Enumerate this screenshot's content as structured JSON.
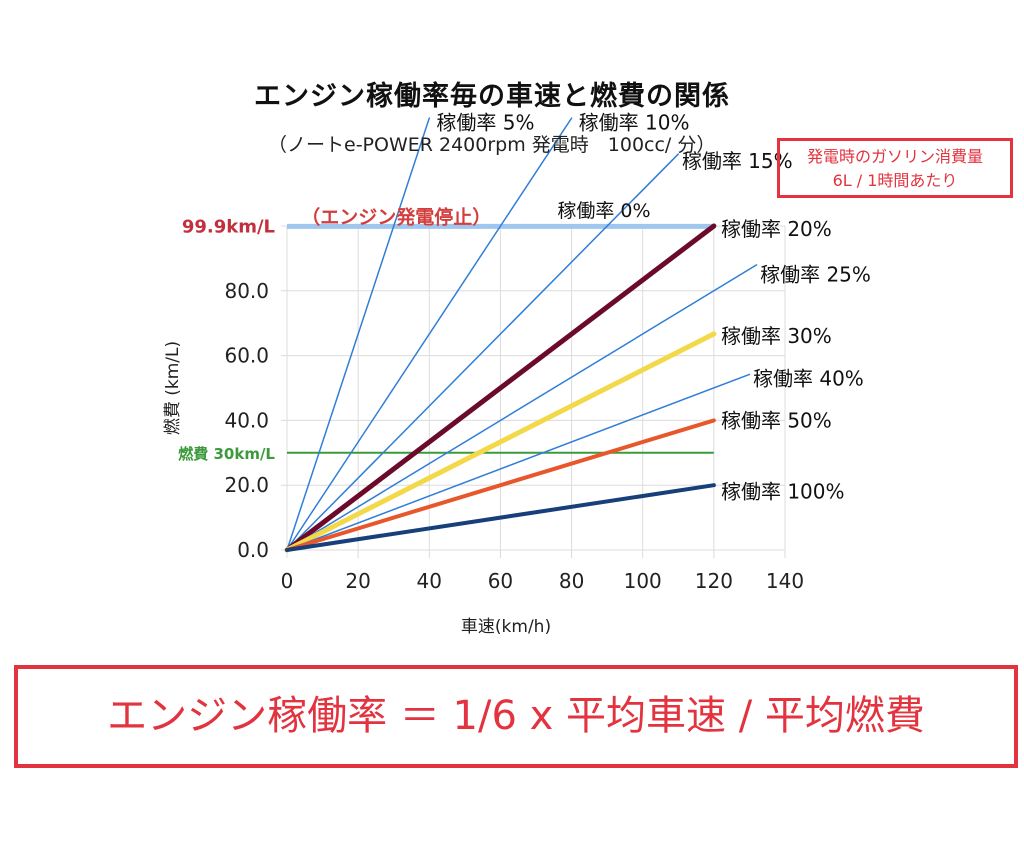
{
  "chart_data": {
    "type": "line",
    "title": "エンジン稼働率毎の車速と燃費の関係",
    "subtitle": "（ノートe-POWER 2400rpm 発電時　100cc/ 分）",
    "xlabel": "車速(km/h)",
    "ylabel": "燃費 (km/L)",
    "xlim": [
      0,
      140
    ],
    "ylim": [
      0,
      100
    ],
    "x_ticks": [
      "0",
      "20",
      "40",
      "60",
      "80",
      "100",
      "120",
      "140"
    ],
    "y_ticks": [
      "0.0",
      "20.0",
      "40.0",
      "60.0",
      "80.0"
    ],
    "x_tick_values": [
      0,
      20,
      40,
      60,
      80,
      100,
      120,
      140
    ],
    "y_tick_values": [
      0,
      20,
      40,
      60,
      80
    ],
    "series": [
      {
        "name": "稼働率 5%",
        "x": [
          0,
          40
        ],
        "y": [
          0,
          133.3
        ],
        "color": "#2f7ed8",
        "width": 1.5,
        "label_pos": [
          42,
          132
        ]
      },
      {
        "name": "稼働率 10%",
        "x": [
          0,
          80
        ],
        "y": [
          0,
          133.3
        ],
        "color": "#2f7ed8",
        "width": 1.5,
        "label_pos": [
          82,
          132
        ]
      },
      {
        "name": "稼働率 15%",
        "x": [
          0,
          110
        ],
        "y": [
          0,
          122.2
        ],
        "color": "#2f7ed8",
        "width": 1.5,
        "label_pos": [
          111,
          120
        ]
      },
      {
        "name": "稼働率 20%",
        "x": [
          0,
          120
        ],
        "y": [
          0,
          100
        ],
        "color": "#6b0a2a",
        "width": 5,
        "label_pos": [
          122,
          99
        ]
      },
      {
        "name": "稼働率 25%",
        "x": [
          0,
          132
        ],
        "y": [
          0,
          88
        ],
        "color": "#2f7ed8",
        "width": 1.5,
        "label_pos": [
          133,
          85
        ]
      },
      {
        "name": "稼働率 30%",
        "x": [
          0,
          120
        ],
        "y": [
          0,
          66.7
        ],
        "color": "#f3d94a",
        "width": 5,
        "label_pos": [
          122,
          66
        ]
      },
      {
        "name": "稼働率 40%",
        "x": [
          0,
          130
        ],
        "y": [
          0,
          54.2
        ],
        "color": "#2f7ed8",
        "width": 1.5,
        "label_pos": [
          131,
          53
        ]
      },
      {
        "name": "稼働率 50%",
        "x": [
          0,
          120
        ],
        "y": [
          0,
          40
        ],
        "color": "#e8572c",
        "width": 4,
        "label_pos": [
          122,
          40
        ]
      },
      {
        "name": "稼働率 100%",
        "x": [
          0,
          120
        ],
        "y": [
          0,
          20
        ],
        "color": "#173f7a",
        "width": 4,
        "label_pos": [
          122,
          18
        ]
      }
    ],
    "reference_lines": [
      {
        "label": "99.9km/L",
        "y": 99.9,
        "x_range": [
          0,
          120
        ],
        "color": "#9fc6ee",
        "width": 5,
        "label_color": "#c22f3d"
      },
      {
        "label": "燃費 30km/L",
        "y": 30,
        "x_range": [
          0,
          120
        ],
        "color": "#3c9a3c",
        "width": 2,
        "label_color": "#3c9a3c"
      }
    ],
    "annotations": [
      {
        "text": "（エンジン発電停止）",
        "x": 4,
        "y": 103,
        "color": "#d43d3d"
      },
      {
        "text": "稼働率 0%",
        "x": 76,
        "y": 105,
        "color": "#111111"
      }
    ]
  },
  "note": {
    "line1": "発電時のガソリン消費量",
    "line2": "6L / 1時間あたり"
  },
  "formula": "エンジン稼働率 ＝ 1/6 x 平均車速 / 平均燃費"
}
